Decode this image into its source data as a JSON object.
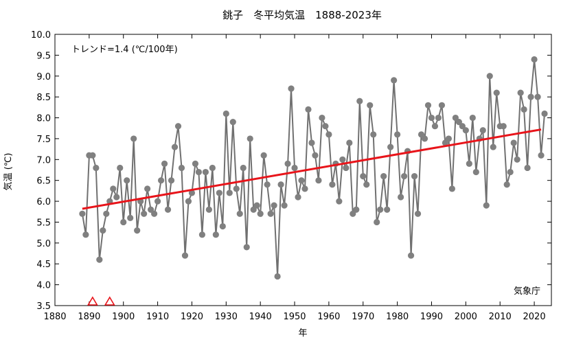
{
  "chart_data": {
    "type": "line",
    "title": "銚子　冬平均気温　1888-2023年",
    "xlabel": "年",
    "ylabel": "気温 (℃)",
    "trend_label": "トレンド=1.4 (℃/100年)",
    "source_label": "気象庁",
    "xlim": [
      1880,
      2025
    ],
    "ylim": [
      3.5,
      10.0
    ],
    "xticks": [
      "1880",
      "1890",
      "1900",
      "1910",
      "1920",
      "1930",
      "1940",
      "1950",
      "1960",
      "1970",
      "1980",
      "1990",
      "2000",
      "2010",
      "2020"
    ],
    "yticks": [
      "3.5",
      "4.0",
      "4.5",
      "5.0",
      "5.5",
      "6.0",
      "6.5",
      "7.0",
      "7.5",
      "8.0",
      "8.5",
      "9.0",
      "9.5",
      "10.0"
    ],
    "grid": false,
    "colors": {
      "series": "#707070",
      "marker": "#808080",
      "trend": "#e8141a",
      "triangle": "#e8141a"
    },
    "series": [
      {
        "x": [
          1888,
          1889,
          1890,
          1891,
          1892,
          1893,
          1894,
          1895,
          1896,
          1897,
          1898,
          1899,
          1900,
          1901,
          1902,
          1903,
          1904,
          1905,
          1906,
          1907,
          1908,
          1909,
          1910,
          1911,
          1912,
          1913,
          1914,
          1915,
          1916,
          1917,
          1918,
          1919,
          1920,
          1921,
          1922,
          1923,
          1924,
          1925,
          1926,
          1927,
          1928,
          1929,
          1930,
          1931,
          1932,
          1933,
          1934,
          1935,
          1936,
          1937,
          1938,
          1939,
          1940,
          1941,
          1942,
          1943,
          1944,
          1945,
          1946,
          1947,
          1948,
          1949,
          1950,
          1951,
          1952,
          1953,
          1954,
          1955,
          1956,
          1957,
          1958,
          1959,
          1960,
          1961,
          1962,
          1963,
          1964,
          1965,
          1966,
          1967,
          1968,
          1969,
          1970,
          1971,
          1972,
          1973,
          1974,
          1975,
          1976,
          1977,
          1978,
          1979,
          1980,
          1981,
          1982,
          1983,
          1984,
          1985,
          1986,
          1987,
          1988,
          1989,
          1990,
          1991,
          1992,
          1993,
          1994,
          1995,
          1996,
          1997,
          1998,
          1999,
          2000,
          2001,
          2002,
          2003,
          2004,
          2005,
          2006,
          2007,
          2008,
          2009,
          2010,
          2011,
          2012,
          2013,
          2014,
          2015,
          2016,
          2017,
          2018,
          2019,
          2020,
          2021,
          2022,
          2023
        ],
        "values": [
          5.7,
          5.2,
          7.1,
          7.1,
          6.8,
          4.6,
          5.3,
          5.7,
          6.0,
          6.3,
          6.1,
          6.8,
          5.5,
          6.5,
          5.6,
          7.5,
          5.3,
          6.0,
          5.7,
          6.3,
          5.8,
          5.7,
          6.0,
          6.5,
          6.9,
          5.8,
          6.5,
          7.3,
          7.8,
          6.8,
          4.7,
          6.0,
          6.2,
          6.9,
          6.7,
          5.2,
          6.7,
          5.8,
          6.8,
          5.2,
          6.2,
          5.4,
          8.1,
          6.2,
          7.9,
          6.3,
          5.7,
          6.8,
          4.9,
          7.5,
          5.8,
          5.9,
          5.7,
          7.1,
          6.4,
          5.7,
          5.9,
          4.2,
          6.4,
          5.9,
          6.9,
          8.7,
          6.8,
          6.1,
          6.5,
          6.3,
          8.2,
          7.4,
          7.1,
          6.5,
          8.0,
          7.8,
          7.6,
          6.4,
          6.9,
          6.0,
          7.0,
          6.8,
          7.4,
          5.7,
          5.8,
          8.4,
          6.6,
          6.4,
          8.3,
          7.6,
          5.5,
          5.8,
          6.6,
          5.8,
          7.3,
          8.9,
          7.6,
          6.1,
          6.6,
          7.2,
          4.7,
          6.6,
          5.7,
          7.6,
          7.5,
          8.3,
          8.0,
          7.8,
          8.0,
          8.3,
          7.4,
          7.5,
          6.3,
          8.0,
          7.9,
          7.8,
          7.7,
          6.9,
          8.0,
          6.7,
          7.5,
          7.7,
          5.9,
          9.0,
          7.3,
          8.6,
          7.8,
          7.8,
          6.4,
          6.7,
          7.4,
          7.0,
          8.6,
          8.2,
          6.8,
          8.5,
          9.4,
          8.5,
          7.1,
          8.1
        ]
      }
    ],
    "trend": {
      "x": [
        1888,
        2022
      ],
      "values": [
        5.82,
        7.72
      ]
    },
    "markers": {
      "type": "triangle",
      "x": [
        1891,
        1896
      ],
      "y": 3.5
    }
  }
}
